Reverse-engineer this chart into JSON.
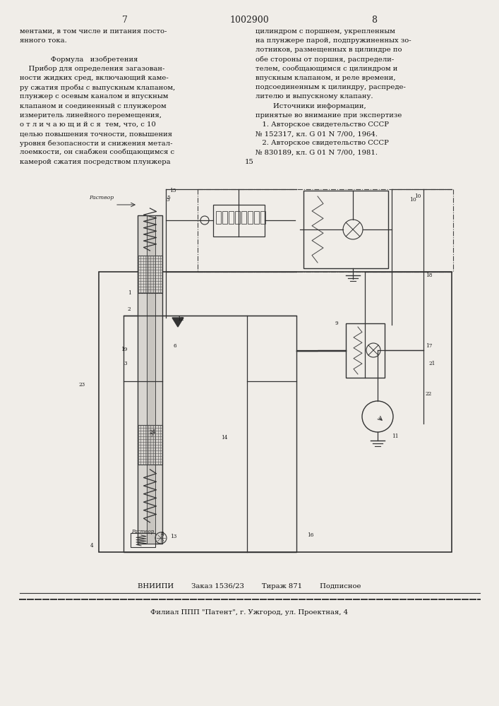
{
  "bg_color": "#f0ede8",
  "page_number_left": "7",
  "page_number_center": "1002900",
  "page_number_right": "8",
  "left_col_lines": [
    "ментами, в том числе и питания посто-",
    "янного тока.",
    "",
    "              Формула   изобретения",
    "    Прибор для определения загазован-",
    "ности жидких сред, включающий каме-",
    "ру сжатия пробы с выпускным клапаном,",
    "плунжер с осевым каналом и впускным",
    "клапаном и соединенный с плунжером",
    "измеритель линейного перемещения,",
    "о т л и ч а ю щ и й с я  тем, что, с 10",
    "целью повышения точности, повышения",
    "уровня безопасности и снижения метал-",
    "лоемкости, он снабжен сообщающимся с",
    "камерой сжатия посредством плунжера"
  ],
  "right_col_lines": [
    "цилиндром с поршнем, укрепленным",
    "на плунжере парой, подпружиненных зо-",
    "лотников, размещенных в цилиндре по",
    "обе стороны от поршня, распредели-",
    "телем, сообщающимся с цилиндром и",
    "впускным клапаном, и реле времени,",
    "подсоединенным к цилиндру, распреде-",
    "лителю и выпускному клапану.",
    "        Источники информации,",
    "принятые во внимание при экспертизе",
    "   1. Авторское свидетельство СССР",
    "№ 152317, кл. G 01 N 7/00, 1964.",
    "   2. Авторское свидетельство СССР",
    "№ 830189, кл. G 01 N 7/00, 1981."
  ],
  "footer_line1": "ВНИИПИ        Заказ 1536/23        Тираж 871        Подписное",
  "footer_line2": "Филиал ППП \"Патент\", г. Ужгород, ул. Проектная, 4"
}
